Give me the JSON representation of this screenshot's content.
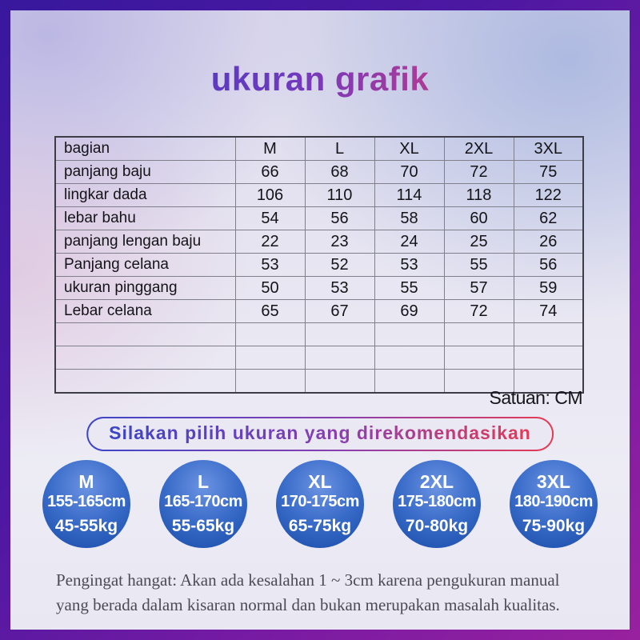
{
  "page": {
    "title": "ukuran grafik",
    "unit_note": "Satuan: CM",
    "recommendation_banner": "Silakan pilih ukuran yang direkomendasikan",
    "footer_lines": [
      "Pengingat hangat: Akan ada kesalahan 1 ~ 3cm karena pengukuran manual",
      "yang berada dalam kisaran normal dan bukan merupakan masalah kualitas."
    ]
  },
  "colors": {
    "frame_gradient_start": "#38189d",
    "frame_gradient_end": "#98219e",
    "title_gradient_start": "#3339c7",
    "title_gradient_end": "#f53b52",
    "circle_blue_light": "#6b93e2",
    "circle_blue_dark": "#1f4fae",
    "pill_border_start": "#3c45c8",
    "pill_border_end": "#e83a52",
    "table_border": "#3d3d47",
    "footer_text": "#4c4b55"
  },
  "chart_data": {
    "type": "table",
    "title": "ukuran grafik",
    "unit": "CM",
    "columns": [
      "bagian",
      "M",
      "L",
      "XL",
      "2XL",
      "3XL"
    ],
    "rows": [
      {
        "label": "panjang baju",
        "values": [
          66,
          68,
          70,
          72,
          75
        ]
      },
      {
        "label": "lingkar dada",
        "values": [
          106,
          110,
          114,
          118,
          122
        ]
      },
      {
        "label": "lebar bahu",
        "values": [
          54,
          56,
          58,
          60,
          62
        ]
      },
      {
        "label": "panjang lengan baju",
        "values": [
          22,
          23,
          24,
          25,
          26
        ]
      },
      {
        "label": "Panjang celana",
        "values": [
          53,
          52,
          53,
          55,
          56
        ]
      },
      {
        "label": "ukuran pinggang",
        "values": [
          50,
          53,
          55,
          57,
          59
        ]
      },
      {
        "label": "Lebar celana",
        "values": [
          65,
          67,
          69,
          72,
          74
        ]
      }
    ],
    "empty_rows": 3
  },
  "size_circles": [
    {
      "size": "M",
      "height": "155-165cm",
      "weight": "45-55kg"
    },
    {
      "size": "L",
      "height": "165-170cm",
      "weight": "55-65kg"
    },
    {
      "size": "XL",
      "height": "170-175cm",
      "weight": "65-75kg"
    },
    {
      "size": "2XL",
      "height": "175-180cm",
      "weight": "70-80kg"
    },
    {
      "size": "3XL",
      "height": "180-190cm",
      "weight": "75-90kg"
    }
  ]
}
